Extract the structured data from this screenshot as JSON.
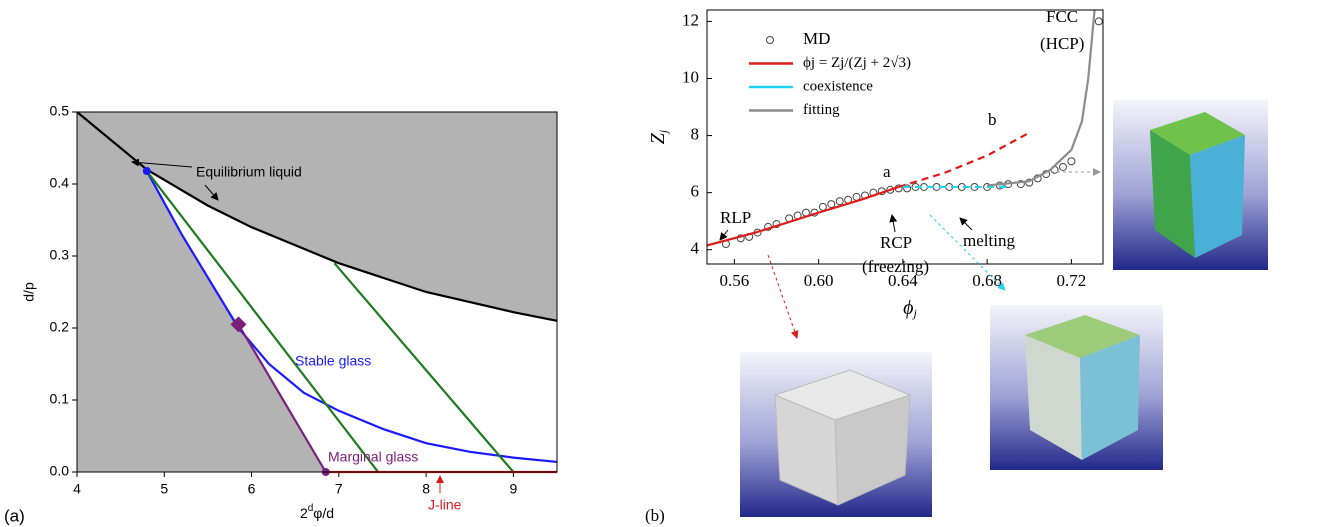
{
  "chart_data": [
    {
      "type": "line",
      "panel_label": "(a)",
      "y_label": "d/p",
      "x_label": "2",
      "x_label_sup": "d",
      "x_label_rest": "φ/d",
      "xlim": [
        4,
        9.5
      ],
      "ylim": [
        0,
        0.5
      ],
      "xticks": [
        4,
        5,
        6,
        7,
        8,
        9
      ],
      "yticks": [
        {
          "value": 0,
          "label": "0.0"
        },
        0.1,
        0.2,
        0.3,
        0.4,
        0.5
      ],
      "background": "#b3b3b3",
      "annotations": [
        "Equilibrium liquid",
        "Stable glass",
        "Marginal glass",
        "J-line"
      ],
      "series": [
        {
          "color": "#000000",
          "x": [
            4,
            4.5,
            4.8,
            5.5,
            6,
            7,
            8,
            9,
            9.5
          ],
          "values": [
            0.5,
            0.45,
            0.42,
            0.37,
            0.34,
            0.29,
            0.25,
            0.222,
            0.21
          ]
        },
        {
          "color": "#1a1aff",
          "x": [
            4.8,
            5.2,
            5.6,
            5.85,
            6.2,
            6.6,
            7,
            7.5,
            8,
            8.5,
            9,
            9.5
          ],
          "values": [
            0.418,
            0.33,
            0.25,
            0.2,
            0.15,
            0.11,
            0.085,
            0.06,
            0.04,
            0.028,
            0.02,
            0.014
          ]
        },
        {
          "color": "#1f7a1f",
          "x": [
            4.8,
            7.45
          ],
          "values": [
            0.418,
            0
          ]
        },
        {
          "color": "#1f7a1f",
          "x": [
            6.95,
            9.0
          ],
          "values": [
            0.29,
            0
          ]
        },
        {
          "color": "#7b1f7b",
          "x": [
            5.85,
            6.85
          ],
          "values": [
            0.205,
            0
          ]
        },
        {
          "color": "#e01b1b",
          "x": [
            6.85,
            9.5
          ],
          "values": [
            0,
            0
          ]
        },
        {
          "color": "#1a1aff",
          "marker": "circle",
          "x": [
            4.8
          ],
          "values": [
            0.418
          ]
        },
        {
          "color": "#7b1f7b",
          "marker": "diamond",
          "x": [
            5.85
          ],
          "values": [
            0.205
          ]
        },
        {
          "color": "#7b1f7b",
          "marker": "circle",
          "x": [
            6.85
          ],
          "values": [
            0
          ]
        }
      ]
    },
    {
      "type": "line",
      "panel_label": "(b)",
      "y_label": "Z",
      "y_label_sub": "j",
      "x_label": "ϕ",
      "x_label_sub": "j",
      "xlim": [
        0.547,
        0.735
      ],
      "ylim": [
        3.5,
        12.4
      ],
      "xticks": [
        0.56,
        {
          "value": 0.6,
          "label": "0.60"
        },
        0.64,
        0.68,
        0.72
      ],
      "yticks": [
        4,
        6,
        8,
        10,
        12
      ],
      "annotations": [
        "FCC",
        "(HCP)",
        "a",
        "b",
        "RLP",
        "RCP",
        "(freezing)",
        "melting"
      ],
      "series": [
        {
          "name": "MD",
          "color": "#444444",
          "marker": "circle",
          "x": [
            0.556,
            0.563,
            0.567,
            0.571,
            0.576,
            0.58,
            0.586,
            0.59,
            0.594,
            0.598,
            0.602,
            0.606,
            0.61,
            0.614,
            0.618,
            0.622,
            0.626,
            0.63,
            0.634,
            0.638,
            0.642,
            0.646,
            0.65,
            0.656,
            0.662,
            0.668,
            0.674,
            0.68,
            0.686,
            0.69,
            0.696,
            0.7,
            0.704,
            0.708,
            0.712,
            0.716,
            0.72,
            0.733
          ],
          "values": [
            4.2,
            4.4,
            4.45,
            4.6,
            4.8,
            4.9,
            5.1,
            5.2,
            5.3,
            5.3,
            5.5,
            5.6,
            5.7,
            5.75,
            5.85,
            5.9,
            6.0,
            6.05,
            6.1,
            6.15,
            6.15,
            6.2,
            6.2,
            6.2,
            6.2,
            6.2,
            6.2,
            6.2,
            6.25,
            6.3,
            6.3,
            6.35,
            6.5,
            6.65,
            6.8,
            6.9,
            7.1,
            12
          ]
        },
        {
          "name": "ϕj = Zj/(Zj + 2√3)",
          "color": "#e01b1b",
          "x": [
            0.547,
            0.57,
            0.6,
            0.62,
            0.638
          ],
          "values": [
            4.15,
            4.6,
            5.3,
            5.75,
            6.2
          ]
        },
        {
          "color": "#e01b1b",
          "dash": true,
          "x": [
            0.638,
            0.66,
            0.68,
            0.7
          ],
          "values": [
            6.2,
            6.7,
            7.3,
            8.1
          ]
        },
        {
          "name": "coexistence",
          "color": "#22d3f0",
          "dash": true,
          "x": [
            0.64,
            0.69
          ],
          "values": [
            6.2,
            6.2
          ]
        },
        {
          "name": "fitting",
          "color": "#8c8c8c",
          "x": [
            0.68,
            0.7,
            0.71,
            0.72,
            0.725,
            0.728,
            0.731
          ],
          "values": [
            6.25,
            6.4,
            6.8,
            7.5,
            8.5,
            10,
            12.4
          ]
        }
      ]
    }
  ]
}
